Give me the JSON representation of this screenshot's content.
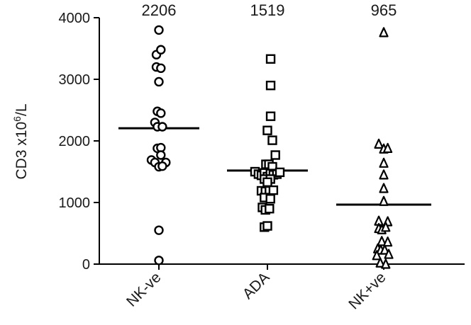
{
  "chart_data": {
    "type": "scatter",
    "subtype": "dot-plot-with-median",
    "ylabel_prefix": "CD3 x10",
    "ylabel_sup": "6",
    "ylabel_suffix": "/L",
    "ylim": [
      0,
      4000
    ],
    "yticks": [
      0,
      1000,
      2000,
      3000,
      4000
    ],
    "grid": false,
    "categories": [
      "NK-ve",
      "ADA",
      "NK+ve"
    ],
    "series": [
      {
        "category": "NK-ve",
        "marker": "circle",
        "median": 2206,
        "median_label": "2206",
        "points": [
          {
            "j": 0.0,
            "v": 3800
          },
          {
            "j": -0.5,
            "v": 3400
          },
          {
            "j": 0.4,
            "v": 3480
          },
          {
            "j": -0.5,
            "v": 3200
          },
          {
            "j": 0.4,
            "v": 3180
          },
          {
            "j": 0.0,
            "v": 2960
          },
          {
            "j": -0.3,
            "v": 2480
          },
          {
            "j": 0.4,
            "v": 2450
          },
          {
            "j": -0.8,
            "v": 2300
          },
          {
            "j": -0.3,
            "v": 2230
          },
          {
            "j": 0.7,
            "v": 2230
          },
          {
            "j": -0.3,
            "v": 1880
          },
          {
            "j": 0.4,
            "v": 1890
          },
          {
            "j": 0.4,
            "v": 1770
          },
          {
            "j": -1.5,
            "v": 1690
          },
          {
            "j": -0.8,
            "v": 1650
          },
          {
            "j": 1.4,
            "v": 1650
          },
          {
            "j": 0.0,
            "v": 1580
          },
          {
            "j": 0.7,
            "v": 1590
          },
          {
            "j": 0.0,
            "v": 550
          },
          {
            "j": 0.0,
            "v": 60
          }
        ]
      },
      {
        "category": "ADA",
        "marker": "square",
        "median": 1519,
        "median_label": "1519",
        "points": [
          {
            "j": 0.65,
            "v": 3330
          },
          {
            "j": 0.65,
            "v": 2900
          },
          {
            "j": 0.65,
            "v": 2400
          },
          {
            "j": 0.0,
            "v": 2170
          },
          {
            "j": 1.0,
            "v": 2010
          },
          {
            "j": 1.6,
            "v": 1770
          },
          {
            "j": -0.3,
            "v": 1620
          },
          {
            "j": 0.3,
            "v": 1620
          },
          {
            "j": 1.0,
            "v": 1580
          },
          {
            "j": -2.5,
            "v": 1500
          },
          {
            "j": -1.8,
            "v": 1460
          },
          {
            "j": -1.2,
            "v": 1440
          },
          {
            "j": -0.6,
            "v": 1480
          },
          {
            "j": 0.0,
            "v": 1420
          },
          {
            "j": 0.6,
            "v": 1470
          },
          {
            "j": 1.2,
            "v": 1450
          },
          {
            "j": 1.9,
            "v": 1460
          },
          {
            "j": 2.5,
            "v": 1490
          },
          {
            "j": -0.6,
            "v": 1380
          },
          {
            "j": 0.6,
            "v": 1380
          },
          {
            "j": 0.0,
            "v": 1330
          },
          {
            "j": -1.2,
            "v": 1190
          },
          {
            "j": -0.4,
            "v": 1180
          },
          {
            "j": 0.4,
            "v": 1190
          },
          {
            "j": 1.2,
            "v": 1200
          },
          {
            "j": -0.6,
            "v": 1080
          },
          {
            "j": 0.6,
            "v": 1060
          },
          {
            "j": -1.0,
            "v": 920
          },
          {
            "j": -0.4,
            "v": 880
          },
          {
            "j": 0.4,
            "v": 900
          },
          {
            "j": -0.6,
            "v": 600
          },
          {
            "j": 0.0,
            "v": 620
          }
        ]
      },
      {
        "category": "NK+ve",
        "marker": "triangle",
        "median": 965,
        "median_label": "965",
        "points": [
          {
            "j": 0.0,
            "v": 3760
          },
          {
            "j": -1.0,
            "v": 1950
          },
          {
            "j": 0.0,
            "v": 1870
          },
          {
            "j": 0.8,
            "v": 1880
          },
          {
            "j": 0.0,
            "v": 1640
          },
          {
            "j": 0.0,
            "v": 1450
          },
          {
            "j": 0.0,
            "v": 1230
          },
          {
            "j": 0.0,
            "v": 1020
          },
          {
            "j": -1.0,
            "v": 700
          },
          {
            "j": 0.8,
            "v": 690
          },
          {
            "j": -1.0,
            "v": 580
          },
          {
            "j": -0.4,
            "v": 560
          },
          {
            "j": 0.4,
            "v": 600
          },
          {
            "j": -0.4,
            "v": 370
          },
          {
            "j": 0.8,
            "v": 360
          },
          {
            "j": -1.2,
            "v": 250
          },
          {
            "j": -0.6,
            "v": 230
          },
          {
            "j": 0.2,
            "v": 230
          },
          {
            "j": -1.4,
            "v": 140
          },
          {
            "j": 1.0,
            "v": 160
          },
          {
            "j": -0.7,
            "v": 20
          },
          {
            "j": 0.4,
            "v": 0
          }
        ]
      }
    ]
  }
}
